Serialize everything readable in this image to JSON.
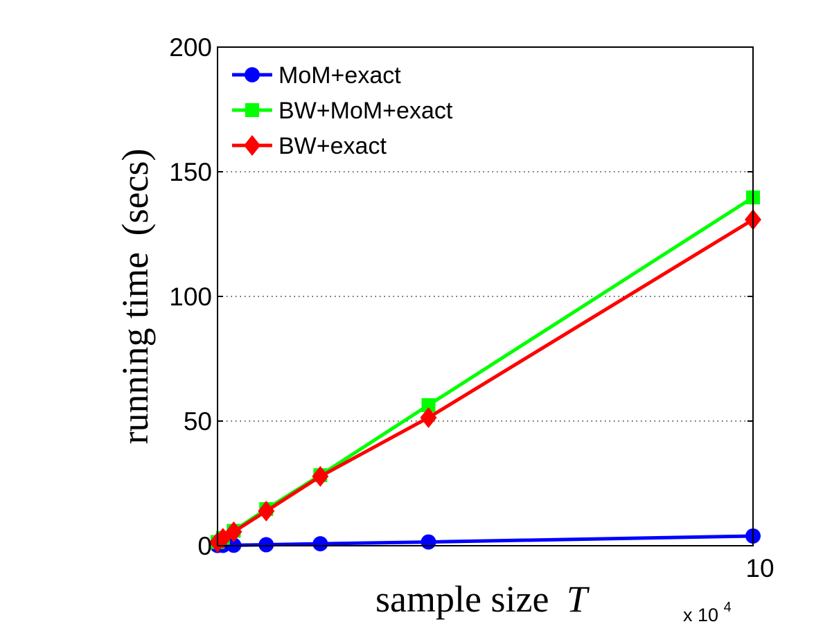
{
  "chart_data": {
    "type": "line",
    "title": "",
    "xlabel": "sample size",
    "xlabel_var": "T",
    "ylabel": "running time",
    "ylabel_unit": "(secs)",
    "x_multiplier_label": "x 10",
    "x_multiplier_exp": "4",
    "x": [
      1000,
      2000,
      4000,
      10000,
      20000,
      40000,
      100000
    ],
    "xlim": [
      1000,
      100000
    ],
    "ylim": [
      0,
      200
    ],
    "xticks": [
      {
        "value": 100000,
        "label": "10"
      }
    ],
    "yticks": [
      {
        "value": 0,
        "label": "0"
      },
      {
        "value": 50,
        "label": "50"
      },
      {
        "value": 100,
        "label": "100"
      },
      {
        "value": 150,
        "label": "150"
      },
      {
        "value": 200,
        "label": "200"
      }
    ],
    "grid": "y-dotted",
    "legend_position": "top-left",
    "series": [
      {
        "name": "MoM+exact",
        "color": "#0000ff",
        "marker": "circle",
        "values": [
          0.1,
          0.15,
          0.2,
          0.4,
          0.8,
          1.5,
          3.9
        ]
      },
      {
        "name": "BW+MoM+exact",
        "color": "#00ff00",
        "marker": "square",
        "values": [
          1.5,
          3.2,
          6.0,
          14.7,
          28.3,
          56.4,
          139.7
        ]
      },
      {
        "name": "BW+exact",
        "color": "#ff0000",
        "marker": "diamond",
        "values": [
          1.4,
          3.0,
          5.6,
          13.9,
          27.8,
          51.4,
          130.8
        ]
      }
    ]
  }
}
